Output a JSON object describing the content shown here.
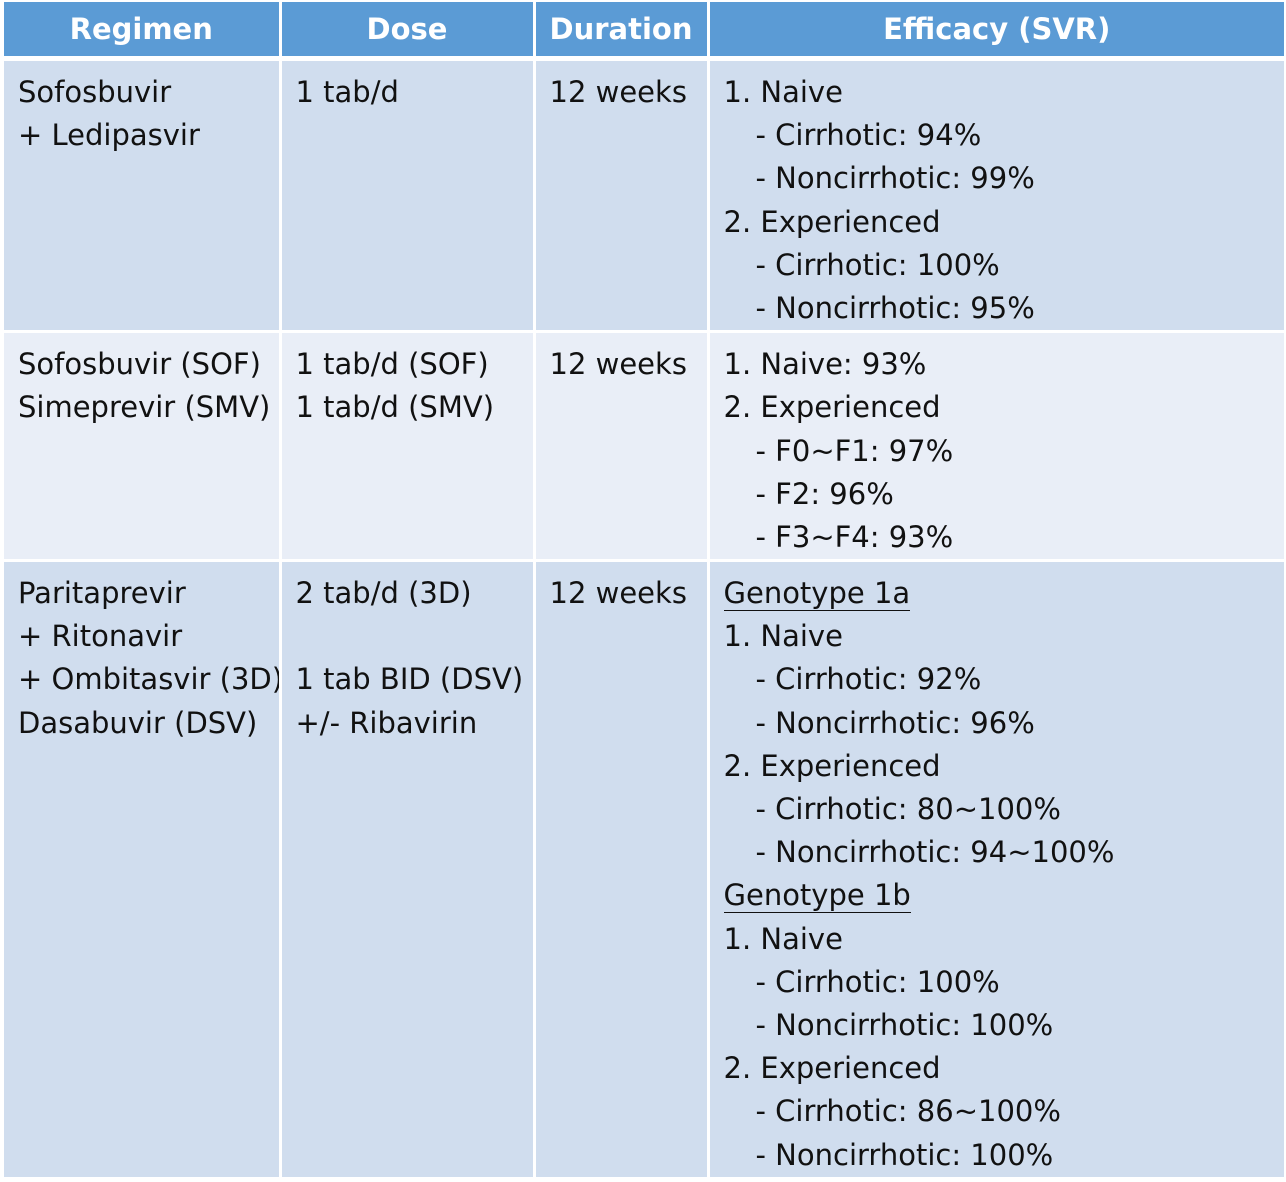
{
  "headers": [
    "Regimen",
    "Dose",
    "Duration",
    "Efficacy (SVR)"
  ],
  "rows": [
    {
      "regimen": [
        "Sofosbuvir",
        "+ Ledipasvir"
      ],
      "dose": [
        "1 tab/d"
      ],
      "duration": "12 weeks",
      "efficacy": [
        "1. Naive",
        "- Cirrhotic: 94%",
        "- Noncirrhotic: 99%",
        "2. Experienced",
        "- Cirrhotic: 100%",
        "- Noncirrhotic: 95%"
      ]
    },
    {
      "regimen": [
        "Sofosbuvir (SOF)",
        "Simeprevir (SMV)"
      ],
      "dose": [
        "1 tab/d (SOF)",
        "1 tab/d (SMV)"
      ],
      "duration": "12 weeks",
      "efficacy": [
        "1. Naive: 93%",
        "2. Experienced",
        "- F0~F1: 97%",
        "- F2: 96%",
        "- F3~F4: 93%"
      ]
    },
    {
      "regimen": [
        "Paritaprevir",
        "+ Ritonavir",
        "+ Ombitasvir (3D)",
        "Dasabuvir (DSV)"
      ],
      "dose": [
        "2 tab/d (3D)",
        "1 tab BID (DSV)",
        "+/- Ribavirin"
      ],
      "duration": "12 weeks",
      "efficacy": [
        "Genotype 1a",
        "1. Naive",
        "- Cirrhotic: 92%",
        "- Noncirrhotic: 96%",
        "2. Experienced",
        "- Cirrhotic: 80~100%",
        "- Noncirrhotic: 94~100%",
        "Genotype 1b",
        "1. Naive",
        "- Cirrhotic: 100%",
        "- Noncirrhotic: 100%",
        "2. Experienced",
        "- Cirrhotic: 86~100%",
        "- Noncirrhotic: 100%"
      ]
    }
  ]
}
